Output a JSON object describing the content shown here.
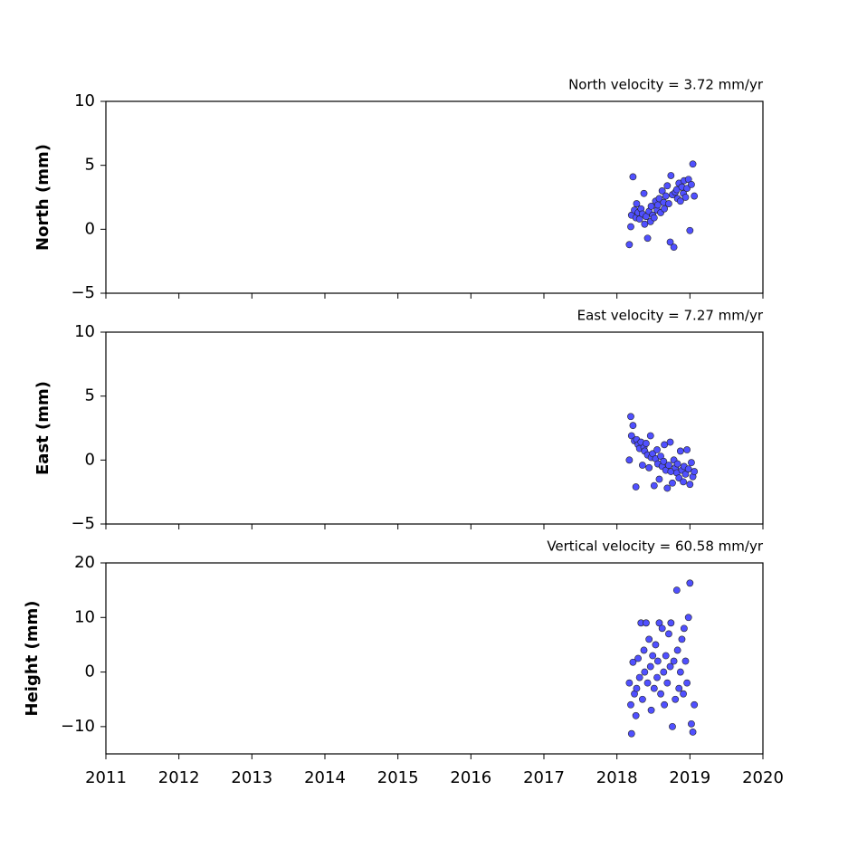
{
  "chart_data": [
    {
      "type": "scatter",
      "title": "North velocity = 3.72 mm/yr",
      "y_label": "North (mm)",
      "color": "#5050ff",
      "xlim": [
        2011,
        2020
      ],
      "xticks": [
        2011,
        2012,
        2013,
        2014,
        2015,
        2016,
        2017,
        2018,
        2019,
        2020
      ],
      "ylim": [
        -5,
        10
      ],
      "yticks": [
        {
          "value": -5,
          "label": "−5"
        },
        0,
        5,
        10
      ],
      "x": [
        2018.17,
        2018.19,
        2018.2,
        2018.22,
        2018.24,
        2018.26,
        2018.27,
        2018.29,
        2018.31,
        2018.33,
        2018.35,
        2018.37,
        2018.38,
        2018.4,
        2018.42,
        2018.44,
        2018.46,
        2018.47,
        2018.49,
        2018.51,
        2018.53,
        2018.55,
        2018.56,
        2018.58,
        2018.6,
        2018.62,
        2018.64,
        2018.65,
        2018.67,
        2018.69,
        2018.71,
        2018.73,
        2018.74,
        2018.76,
        2018.78,
        2018.8,
        2018.82,
        2018.83,
        2018.85,
        2018.87,
        2018.89,
        2018.91,
        2018.92,
        2018.94,
        2018.96,
        2018.98,
        2019.0,
        2019.02,
        2019.04,
        2019.06
      ],
      "values": [
        -1.2,
        0.2,
        1.1,
        4.1,
        1.5,
        0.9,
        2.0,
        1.3,
        0.8,
        1.6,
        1.2,
        2.8,
        0.4,
        1.0,
        -0.7,
        1.4,
        0.6,
        1.8,
        1.1,
        0.9,
        2.2,
        1.5,
        1.9,
        2.4,
        1.3,
        3.0,
        2.1,
        1.6,
        2.6,
        3.4,
        2.0,
        -1.0,
        4.2,
        2.7,
        -1.4,
        2.9,
        3.1,
        2.4,
        3.6,
        2.2,
        3.3,
        2.8,
        3.8,
        2.5,
        3.2,
        3.9,
        -0.1,
        3.5,
        5.1,
        2.6
      ]
    },
    {
      "type": "scatter",
      "title": "East velocity = 7.27 mm/yr",
      "y_label": "East (mm)",
      "color": "#5050ff",
      "xlim": [
        2011,
        2020
      ],
      "xticks": [
        2011,
        2012,
        2013,
        2014,
        2015,
        2016,
        2017,
        2018,
        2019,
        2020
      ],
      "ylim": [
        -5,
        10
      ],
      "yticks": [
        {
          "value": -5,
          "label": "−5"
        },
        0,
        5,
        10
      ],
      "x": [
        2018.17,
        2018.19,
        2018.2,
        2018.22,
        2018.24,
        2018.26,
        2018.27,
        2018.29,
        2018.31,
        2018.33,
        2018.35,
        2018.37,
        2018.38,
        2018.4,
        2018.42,
        2018.44,
        2018.46,
        2018.47,
        2018.49,
        2018.51,
        2018.53,
        2018.55,
        2018.56,
        2018.58,
        2018.6,
        2018.62,
        2018.64,
        2018.65,
        2018.67,
        2018.69,
        2018.71,
        2018.73,
        2018.74,
        2018.76,
        2018.78,
        2018.8,
        2018.82,
        2018.83,
        2018.85,
        2018.87,
        2018.89,
        2018.91,
        2018.92,
        2018.94,
        2018.96,
        2018.98,
        2019.0,
        2019.02,
        2019.04,
        2019.06
      ],
      "values": [
        0.0,
        3.4,
        1.9,
        2.7,
        1.5,
        -2.1,
        1.6,
        1.2,
        0.9,
        1.4,
        -0.4,
        1.0,
        0.7,
        1.3,
        0.4,
        -0.6,
        1.9,
        0.2,
        0.5,
        -2.0,
        0.1,
        0.8,
        -0.3,
        -1.5,
        0.3,
        -0.5,
        -0.1,
        1.2,
        -0.8,
        -2.2,
        -0.4,
        1.4,
        -0.9,
        -1.8,
        0.0,
        -0.6,
        -1.0,
        -0.3,
        -1.4,
        0.7,
        -0.8,
        -1.7,
        -0.5,
        -1.1,
        0.8,
        -0.7,
        -1.9,
        -0.2,
        -1.3,
        -0.9
      ]
    },
    {
      "type": "scatter",
      "title": "Vertical velocity = 60.58 mm/yr",
      "y_label": "Height (mm)",
      "color": "#5050ff",
      "xlim": [
        2011,
        2020
      ],
      "xticks": [
        2011,
        2012,
        2013,
        2014,
        2015,
        2016,
        2017,
        2018,
        2019,
        2020
      ],
      "ylim": [
        -15,
        20
      ],
      "yticks": [
        {
          "value": -10,
          "label": "−10"
        },
        0,
        10,
        20
      ],
      "x": [
        2018.17,
        2018.19,
        2018.2,
        2018.22,
        2018.24,
        2018.26,
        2018.27,
        2018.29,
        2018.31,
        2018.33,
        2018.35,
        2018.37,
        2018.38,
        2018.4,
        2018.42,
        2018.44,
        2018.46,
        2018.47,
        2018.49,
        2018.51,
        2018.53,
        2018.55,
        2018.56,
        2018.58,
        2018.6,
        2018.62,
        2018.64,
        2018.65,
        2018.67,
        2018.69,
        2018.71,
        2018.73,
        2018.74,
        2018.76,
        2018.78,
        2018.8,
        2018.82,
        2018.83,
        2018.85,
        2018.87,
        2018.89,
        2018.91,
        2018.92,
        2018.94,
        2018.96,
        2018.98,
        2019.0,
        2019.02,
        2019.04,
        2019.06
      ],
      "values": [
        -2,
        -6,
        -11.3,
        1.8,
        -4,
        -8,
        -3,
        2.5,
        -1,
        9,
        -5,
        4,
        0,
        9,
        -2,
        6,
        1,
        -7,
        3,
        -3,
        5,
        -1,
        2,
        9,
        -4,
        8,
        0,
        -6,
        3,
        -2,
        7,
        1,
        9,
        -10,
        2,
        -5,
        15,
        4,
        -3,
        0,
        6,
        -4,
        8,
        2,
        -2,
        10,
        16.3,
        -9.5,
        -11,
        -6
      ]
    }
  ]
}
